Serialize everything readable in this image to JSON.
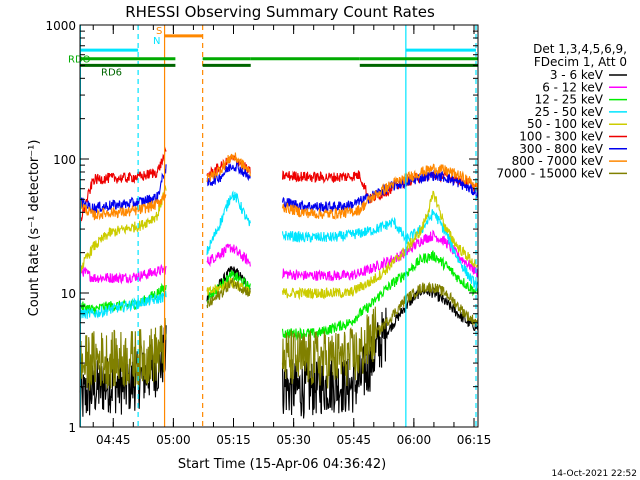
{
  "chart_data": {
    "type": "line",
    "title": "RHESSI Observing Summary Count Rates",
    "xlabel": "Start Time (15-Apr-06 04:36:42)",
    "ylabel": "Count Rate (s⁻¹ detector⁻¹)",
    "yscale": "log",
    "ylim": [
      1,
      1000
    ],
    "xlim_minutes_of_day": [
      276.7,
      376
    ],
    "x_ticks": [
      {
        "m": 285,
        "label": "04:45"
      },
      {
        "m": 300,
        "label": "05:00"
      },
      {
        "m": 315,
        "label": "05:15"
      },
      {
        "m": 330,
        "label": "05:30"
      },
      {
        "m": 345,
        "label": "05:45"
      },
      {
        "m": 360,
        "label": "06:00"
      },
      {
        "m": 375,
        "label": "06:15"
      }
    ],
    "y_ticks": [
      {
        "v": 1,
        "label": "1"
      },
      {
        "v": 10,
        "label": "10"
      },
      {
        "v": 100,
        "label": "100"
      },
      {
        "v": 1000,
        "label": "1000"
      }
    ],
    "legend": {
      "placement": "right",
      "header": [
        "Det 1,3,4,5,6,9,",
        "FDecim 1, Att 0"
      ]
    },
    "flags": [
      {
        "label": "RDO",
        "color": "#00aa00",
        "value": 560,
        "segments": [
          [
            276.7,
            300.5
          ],
          [
            307.3,
            319.3
          ],
          [
            319.3,
            346.5
          ],
          [
            346.5,
            376
          ]
        ]
      },
      {
        "label": "RD6",
        "color": "#006600",
        "value": 500,
        "segments": [
          [
            276.7,
            300.5
          ],
          [
            307.3,
            319.3
          ],
          [
            346.5,
            376
          ]
        ]
      },
      {
        "label": "S",
        "color": "#ff8800",
        "value": 830,
        "segments": [
          [
            297.8,
            307.3
          ]
        ]
      },
      {
        "label": "N",
        "color": "#00e5ff",
        "value": 650,
        "segments": [
          [
            276.7,
            291.2
          ],
          [
            358,
            375.5
          ]
        ]
      }
    ],
    "vlines": [
      {
        "m": 276.8,
        "color": "#00e5ff",
        "dashed": false
      },
      {
        "m": 291.2,
        "color": "#00e5ff",
        "dashed": true
      },
      {
        "m": 297.8,
        "color": "#ff8800",
        "dashed": false
      },
      {
        "m": 307.3,
        "color": "#ff8800",
        "dashed": true
      },
      {
        "m": 358.0,
        "color": "#00e5ff",
        "dashed": false
      },
      {
        "m": 375.5,
        "color": "#00e5ff",
        "dashed": true
      }
    ],
    "data_gaps": [
      [
        298.2,
        308.3
      ],
      [
        319.3,
        327.2
      ]
    ],
    "series": [
      {
        "name": "3 - 6 keV",
        "color": "#000000",
        "points": [
          [
            276.7,
            1.6
          ],
          [
            280,
            1.9
          ],
          [
            284,
            2.1
          ],
          [
            288,
            2.0
          ],
          [
            292,
            2.3
          ],
          [
            296,
            2.8
          ],
          [
            298,
            3.5
          ],
          [
            308.3,
            9
          ],
          [
            312,
            12
          ],
          [
            314.5,
            15
          ],
          [
            316,
            14
          ],
          [
            319,
            11
          ],
          [
            327.2,
            2.0
          ],
          [
            332,
            1.9
          ],
          [
            336,
            2.0
          ],
          [
            340,
            2.1
          ],
          [
            344,
            2.0
          ],
          [
            346.5,
            2.2
          ],
          [
            349,
            3
          ],
          [
            352,
            4.5
          ],
          [
            355,
            6
          ],
          [
            358,
            8
          ],
          [
            362,
            10.5
          ],
          [
            365,
            10
          ],
          [
            368,
            8.5
          ],
          [
            371,
            7
          ],
          [
            373.5,
            6
          ],
          [
            376,
            5.5
          ]
        ]
      },
      {
        "name": "6 - 12 keV",
        "color": "#ff00ff",
        "points": [
          [
            276.7,
            15
          ],
          [
            280,
            13
          ],
          [
            284,
            13
          ],
          [
            288,
            13
          ],
          [
            292,
            13.5
          ],
          [
            296,
            14.5
          ],
          [
            298,
            15
          ],
          [
            308.3,
            17
          ],
          [
            312,
            20
          ],
          [
            314.5,
            22
          ],
          [
            316,
            20
          ],
          [
            319,
            17
          ],
          [
            327.2,
            14
          ],
          [
            332,
            13.5
          ],
          [
            336,
            13.5
          ],
          [
            340,
            13.5
          ],
          [
            344,
            13.5
          ],
          [
            346.5,
            14
          ],
          [
            349,
            15
          ],
          [
            352,
            16.5
          ],
          [
            355,
            18
          ],
          [
            358,
            20
          ],
          [
            362,
            25
          ],
          [
            365,
            27
          ],
          [
            368,
            24
          ],
          [
            371,
            19
          ],
          [
            374,
            16
          ],
          [
            376,
            14
          ]
        ]
      },
      {
        "name": "12 - 25 keV",
        "color": "#00ee00",
        "points": [
          [
            276.7,
            8
          ],
          [
            280,
            7.5
          ],
          [
            284,
            8
          ],
          [
            288,
            8
          ],
          [
            292,
            8.5
          ],
          [
            296,
            10
          ],
          [
            298,
            11
          ],
          [
            308.3,
            9
          ],
          [
            312,
            11.5
          ],
          [
            314.5,
            13.5
          ],
          [
            316,
            13
          ],
          [
            319,
            11
          ],
          [
            327.2,
            5
          ],
          [
            332,
            5
          ],
          [
            336,
            5
          ],
          [
            340,
            5.5
          ],
          [
            344,
            6
          ],
          [
            346.5,
            7
          ],
          [
            349,
            8
          ],
          [
            352,
            10
          ],
          [
            355,
            12
          ],
          [
            358,
            14
          ],
          [
            362,
            18
          ],
          [
            365,
            19
          ],
          [
            368,
            16
          ],
          [
            371,
            13
          ],
          [
            374,
            11
          ],
          [
            376,
            10
          ]
        ]
      },
      {
        "name": "25 - 50 keV",
        "color": "#00e5ff",
        "points": [
          [
            276.7,
            7
          ],
          [
            280,
            7
          ],
          [
            284,
            7.5
          ],
          [
            288,
            8
          ],
          [
            292,
            8.5
          ],
          [
            296,
            9
          ],
          [
            298,
            9.5
          ],
          [
            308.3,
            20
          ],
          [
            312,
            35
          ],
          [
            314.5,
            55
          ],
          [
            316,
            50
          ],
          [
            319,
            32
          ],
          [
            327.2,
            27
          ],
          [
            332,
            26
          ],
          [
            336,
            26
          ],
          [
            340,
            26
          ],
          [
            344,
            27
          ],
          [
            346.5,
            28
          ],
          [
            349,
            29
          ],
          [
            352,
            31
          ],
          [
            355,
            34
          ],
          [
            358,
            25
          ],
          [
            362,
            30
          ],
          [
            365,
            40
          ],
          [
            368,
            28
          ],
          [
            371,
            18
          ],
          [
            374,
            13
          ],
          [
            376,
            11
          ]
        ]
      },
      {
        "name": "50 - 100 keV",
        "color": "#cccc00",
        "points": [
          [
            276.7,
            15
          ],
          [
            280,
            22
          ],
          [
            284,
            28
          ],
          [
            288,
            30
          ],
          [
            292,
            32
          ],
          [
            296,
            38
          ],
          [
            298,
            60
          ],
          [
            308.3,
            10
          ],
          [
            312,
            11
          ],
          [
            314.5,
            12
          ],
          [
            316,
            11.5
          ],
          [
            319,
            10
          ],
          [
            327.2,
            10
          ],
          [
            332,
            10
          ],
          [
            336,
            10
          ],
          [
            340,
            10
          ],
          [
            344,
            10
          ],
          [
            346.5,
            11
          ],
          [
            349,
            12
          ],
          [
            352,
            14
          ],
          [
            355,
            17
          ],
          [
            358,
            21
          ],
          [
            362,
            30
          ],
          [
            365,
            55
          ],
          [
            368,
            30
          ],
          [
            371,
            22
          ],
          [
            374,
            18
          ],
          [
            376,
            15
          ]
        ]
      },
      {
        "name": "100 - 300 keV",
        "color": "#ee0000",
        "points": [
          [
            276.7,
            34
          ],
          [
            280,
            70
          ],
          [
            284,
            72
          ],
          [
            288,
            72
          ],
          [
            292,
            74
          ],
          [
            296,
            80
          ],
          [
            298,
            110
          ],
          [
            308.3,
            75
          ],
          [
            312,
            88
          ],
          [
            314.5,
            100
          ],
          [
            316,
            98
          ],
          [
            319,
            80
          ],
          [
            327.2,
            75
          ],
          [
            332,
            74
          ],
          [
            336,
            73
          ],
          [
            340,
            73
          ],
          [
            344,
            74
          ],
          [
            346.5,
            76
          ],
          [
            349,
            50
          ],
          [
            352,
            55
          ],
          [
            355,
            62
          ],
          [
            358,
            68
          ],
          [
            362,
            74
          ],
          [
            365,
            76
          ],
          [
            368,
            74
          ],
          [
            371,
            70
          ],
          [
            374,
            65
          ],
          [
            376,
            60
          ]
        ]
      },
      {
        "name": "300 - 800 keV",
        "color": "#0000ee",
        "points": [
          [
            276.7,
            48
          ],
          [
            280,
            43
          ],
          [
            284,
            45
          ],
          [
            288,
            46
          ],
          [
            292,
            48
          ],
          [
            296,
            52
          ],
          [
            298,
            85
          ],
          [
            308.3,
            65
          ],
          [
            312,
            75
          ],
          [
            314.5,
            90
          ],
          [
            316,
            88
          ],
          [
            319,
            72
          ],
          [
            327.2,
            48
          ],
          [
            332,
            45
          ],
          [
            336,
            44
          ],
          [
            340,
            44
          ],
          [
            344,
            45
          ],
          [
            346.5,
            48
          ],
          [
            349,
            52
          ],
          [
            352,
            58
          ],
          [
            355,
            63
          ],
          [
            358,
            67
          ],
          [
            362,
            73
          ],
          [
            365,
            76
          ],
          [
            368,
            73
          ],
          [
            371,
            67
          ],
          [
            374,
            60
          ],
          [
            376,
            55
          ]
        ]
      },
      {
        "name": "800 - 7000 keV",
        "color": "#ff8800",
        "points": [
          [
            276.7,
            46
          ],
          [
            280,
            38
          ],
          [
            284,
            40
          ],
          [
            288,
            40
          ],
          [
            292,
            42
          ],
          [
            296,
            46
          ],
          [
            298,
            55
          ],
          [
            308.3,
            70
          ],
          [
            312,
            85
          ],
          [
            314.5,
            105
          ],
          [
            316,
            100
          ],
          [
            319,
            80
          ],
          [
            327.2,
            44
          ],
          [
            332,
            40
          ],
          [
            336,
            39
          ],
          [
            340,
            39
          ],
          [
            344,
            40
          ],
          [
            346.5,
            42
          ],
          [
            349,
            50
          ],
          [
            352,
            58
          ],
          [
            355,
            66
          ],
          [
            358,
            72
          ],
          [
            362,
            80
          ],
          [
            365,
            85
          ],
          [
            368,
            82
          ],
          [
            371,
            76
          ],
          [
            374,
            68
          ],
          [
            376,
            62
          ]
        ]
      },
      {
        "name": "7000 - 15000 keV",
        "color": "#808000",
        "points": [
          [
            276.7,
            2.8
          ],
          [
            280,
            3.2
          ],
          [
            284,
            3.2
          ],
          [
            288,
            3.2
          ],
          [
            292,
            3.3
          ],
          [
            296,
            3.5
          ],
          [
            298,
            4
          ],
          [
            308.3,
            8
          ],
          [
            312,
            10
          ],
          [
            314.5,
            12
          ],
          [
            316,
            11.5
          ],
          [
            319,
            10
          ],
          [
            327.2,
            3.3
          ],
          [
            332,
            3.2
          ],
          [
            336,
            3.2
          ],
          [
            340,
            3.2
          ],
          [
            344,
            3.3
          ],
          [
            346.5,
            3.5
          ],
          [
            349,
            4.5
          ],
          [
            352,
            5.5
          ],
          [
            355,
            7
          ],
          [
            358,
            9
          ],
          [
            362,
            11
          ],
          [
            365,
            11
          ],
          [
            368,
            10
          ],
          [
            371,
            8
          ],
          [
            374,
            6.5
          ],
          [
            376,
            6
          ]
        ]
      }
    ],
    "footer_timestamp": "14-Oct-2021 22:52"
  }
}
